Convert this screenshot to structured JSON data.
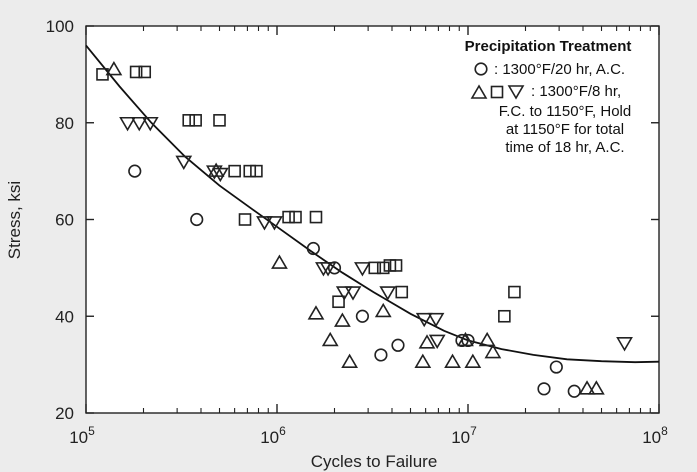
{
  "chart_data": {
    "type": "scatter",
    "x_scale": "log",
    "xlabel": "Cycles to Failure",
    "ylabel": "Stress, ksi",
    "xlim": [
      100000,
      100000000
    ],
    "ylim": [
      20,
      100
    ],
    "x_tick_labels": [
      {
        "value": 100000,
        "base": "10",
        "exp": "5"
      },
      {
        "value": 1000000,
        "base": "10",
        "exp": "6"
      },
      {
        "value": 10000000,
        "base": "10",
        "exp": "7"
      },
      {
        "value": 100000000,
        "base": "10",
        "exp": "8"
      }
    ],
    "y_ticks": [
      20,
      40,
      60,
      80,
      100
    ],
    "legend": {
      "title": "Precipitation Treatment",
      "entries": [
        {
          "symbols": [
            "circle"
          ],
          "lines": [
            ": 1300°F/20 hr, A.C."
          ]
        },
        {
          "symbols": [
            "triangle",
            "square",
            "triangle-down"
          ],
          "lines": [
            ": 1300°F/8 hr,",
            "F.C. to 1150°F, Hold",
            "at 1150°F for total",
            "time of 18 hr, A.C."
          ]
        }
      ]
    },
    "series": [
      {
        "marker": "circle",
        "points": [
          [
            180000,
            70
          ],
          [
            380000,
            60
          ],
          [
            1550000,
            54
          ],
          [
            2000000,
            50
          ],
          [
            2800000,
            40
          ],
          [
            3500000,
            32
          ],
          [
            4300000,
            34
          ],
          [
            9300000,
            35
          ],
          [
            10000000,
            35
          ],
          [
            25000000,
            25
          ],
          [
            29000000,
            29.5
          ],
          [
            36000000,
            24.5
          ]
        ]
      },
      {
        "marker": "triangle",
        "points": [
          [
            140000,
            91
          ],
          [
            480000,
            70
          ],
          [
            1030000,
            51
          ],
          [
            1600000,
            40.5
          ],
          [
            1900000,
            35
          ],
          [
            2200000,
            39
          ],
          [
            2400000,
            30.5
          ],
          [
            3600000,
            41
          ],
          [
            5800000,
            30.5
          ],
          [
            6100000,
            34.5
          ],
          [
            8300000,
            30.5
          ],
          [
            9700000,
            35
          ],
          [
            10600000,
            30.5
          ],
          [
            12600000,
            35
          ],
          [
            13500000,
            32.5
          ],
          [
            42000000,
            25
          ],
          [
            47000000,
            25
          ]
        ]
      },
      {
        "marker": "square",
        "points": [
          [
            122000,
            90
          ],
          [
            183000,
            90.5
          ],
          [
            203000,
            90.5
          ],
          [
            345000,
            80.5
          ],
          [
            375000,
            80.5
          ],
          [
            500000,
            80.5
          ],
          [
            600000,
            70
          ],
          [
            720000,
            70
          ],
          [
            780000,
            70
          ],
          [
            680000,
            60
          ],
          [
            1150000,
            60.5
          ],
          [
            1250000,
            60.5
          ],
          [
            1600000,
            60.5
          ],
          [
            2100000,
            43
          ],
          [
            3250000,
            50
          ],
          [
            3600000,
            50
          ],
          [
            3900000,
            50.5
          ],
          [
            4200000,
            50.5
          ],
          [
            4500000,
            45
          ],
          [
            15500000,
            40
          ],
          [
            17500000,
            45
          ]
        ]
      },
      {
        "marker": "triangle-down",
        "points": [
          [
            165000,
            80
          ],
          [
            190000,
            80
          ],
          [
            217000,
            80
          ],
          [
            325000,
            72
          ],
          [
            470000,
            70
          ],
          [
            505000,
            69.5
          ],
          [
            860000,
            59.5
          ],
          [
            970000,
            59.5
          ],
          [
            1750000,
            50
          ],
          [
            1850000,
            50
          ],
          [
            2250000,
            45
          ],
          [
            2500000,
            45
          ],
          [
            2800000,
            50
          ],
          [
            3800000,
            45
          ],
          [
            5900000,
            39.5
          ],
          [
            6800000,
            39.5
          ],
          [
            6900000,
            35
          ],
          [
            66000000,
            34.5
          ]
        ]
      }
    ],
    "fit_curve": [
      [
        100000,
        96
      ],
      [
        150000,
        87.5
      ],
      [
        220000,
        80
      ],
      [
        330000,
        73
      ],
      [
        500000,
        67
      ],
      [
        750000,
        62
      ],
      [
        1000000,
        58.5
      ],
      [
        1500000,
        53.5
      ],
      [
        2200000,
        49
      ],
      [
        3200000,
        45
      ],
      [
        5000000,
        40.5
      ],
      [
        7500000,
        37
      ],
      [
        10000000,
        35
      ],
      [
        15000000,
        33.2
      ],
      [
        22000000,
        32
      ],
      [
        33000000,
        31.1
      ],
      [
        50000000,
        30.7
      ],
      [
        75000000,
        30.5
      ],
      [
        100000000,
        30.6
      ]
    ]
  }
}
